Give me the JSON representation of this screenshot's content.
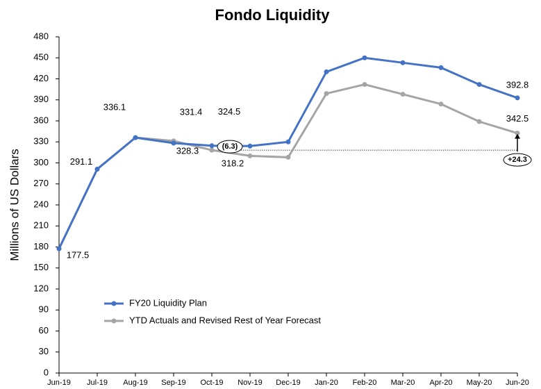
{
  "chart_data": {
    "type": "line",
    "title": "Fondo Liquidity",
    "y_label": "Millions of US Dollars",
    "categories": [
      "Jun-19",
      "Jul-19",
      "Aug-19",
      "Sep-19",
      "Oct-19",
      "Nov-19",
      "Dec-19",
      "Jan-20",
      "Feb-20",
      "Mar-20",
      "Apr-20",
      "May-20",
      "Jun-20"
    ],
    "series": [
      {
        "name": "FY20 Liquidity Plan",
        "color": "#4472c4",
        "values": [
          177.5,
          291.1,
          336.1,
          328.3,
          324.5,
          324,
          330,
          430,
          450,
          443,
          436,
          412,
          392.8
        ],
        "value_labels": [
          "177.5",
          "291.1",
          "336.1",
          "328.3",
          "324.5",
          null,
          null,
          null,
          null,
          null,
          null,
          null,
          "392.8"
        ]
      },
      {
        "name": "YTD Actuals and Revised Rest of Year Forecast",
        "color": "#a5a5a5",
        "values": [
          177.5,
          291.1,
          336.1,
          331.4,
          318.2,
          310,
          308,
          399,
          412,
          398,
          384,
          359,
          342.5
        ],
        "value_labels": [
          null,
          null,
          null,
          "331.4",
          "318.2",
          null,
          null,
          null,
          null,
          null,
          null,
          null,
          "342.5"
        ]
      }
    ],
    "annotations": [
      {
        "text": "(6.3)"
      },
      {
        "text": "+24.3"
      }
    ],
    "ylim": [
      0,
      480
    ],
    "yticks": [
      0,
      30,
      60,
      90,
      120,
      150,
      180,
      210,
      240,
      270,
      300,
      330,
      360,
      390,
      420,
      450,
      480
    ],
    "legend": "lower left",
    "grid": false
  }
}
